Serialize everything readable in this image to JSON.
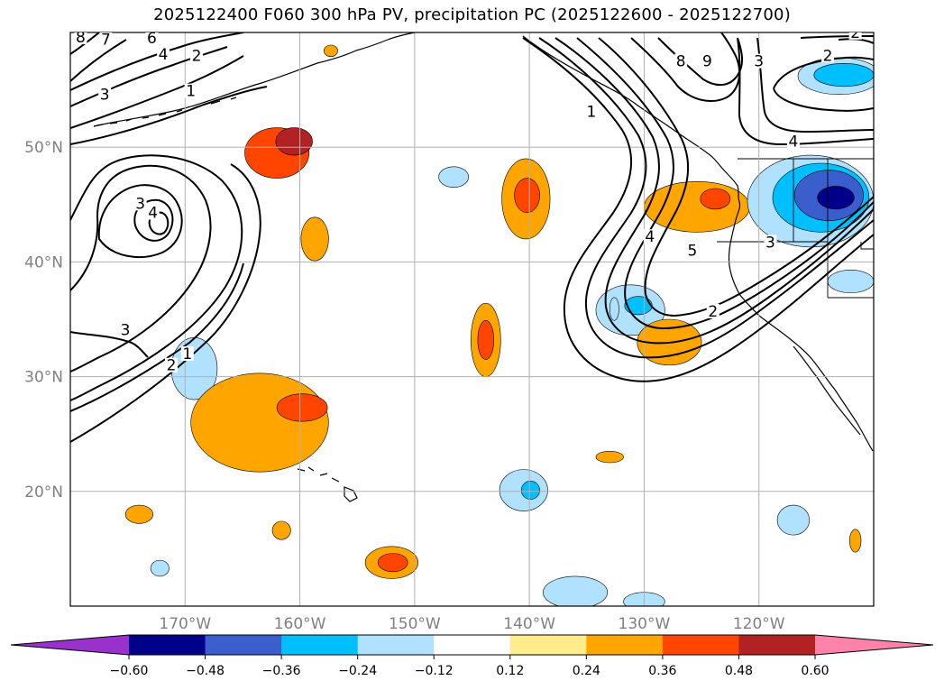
{
  "chart_data": {
    "type": "contour-map",
    "title": "2025122400 F060 300 hPa PV, precipitation PC (2025122600 - 2025122700)",
    "x_ticks": [
      "170°W",
      "160°W",
      "150°W",
      "140°W",
      "130°W",
      "120°W"
    ],
    "x_tick_values": [
      -170,
      -160,
      -150,
      -140,
      -130,
      -120
    ],
    "y_ticks": [
      "50°N",
      "40°N",
      "30°N",
      "20°N"
    ],
    "y_tick_values": [
      50,
      40,
      30,
      20
    ],
    "lon_range": [
      -180,
      -110
    ],
    "lat_range": [
      10,
      60
    ],
    "contour_field": "300 hPa PV",
    "contour_labels": [
      {
        "text": "8",
        "lon": -179.1,
        "lat": 59.3
      },
      {
        "text": "7",
        "lon": -176.9,
        "lat": 59.1
      },
      {
        "text": "6",
        "lon": -172.9,
        "lat": 59.2
      },
      {
        "text": "4",
        "lon": -171.9,
        "lat": 57.8
      },
      {
        "text": "2",
        "lon": -169.0,
        "lat": 57.7
      },
      {
        "text": "3",
        "lon": -177.0,
        "lat": 54.3
      },
      {
        "text": "1",
        "lon": -169.5,
        "lat": 54.6
      },
      {
        "text": "1",
        "lon": -134.6,
        "lat": 52.8
      },
      {
        "text": "8",
        "lon": -126.8,
        "lat": 57.2
      },
      {
        "text": "9",
        "lon": -124.5,
        "lat": 57.2
      },
      {
        "text": "3",
        "lon": -120.0,
        "lat": 57.2
      },
      {
        "text": "2",
        "lon": -114.0,
        "lat": 57.7
      },
      {
        "text": "2",
        "lon": -111.6,
        "lat": 59.7
      },
      {
        "text": "4",
        "lon": -117.0,
        "lat": 50.2
      },
      {
        "text": "3",
        "lon": -173.9,
        "lat": 44.8
      },
      {
        "text": "4",
        "lon": -172.8,
        "lat": 44.0
      },
      {
        "text": "4",
        "lon": -129.5,
        "lat": 41.9
      },
      {
        "text": "5",
        "lon": -125.8,
        "lat": 40.7
      },
      {
        "text": "3",
        "lon": -119.0,
        "lat": 41.4
      },
      {
        "text": "2",
        "lon": -124.0,
        "lat": 35.4
      },
      {
        "text": "3",
        "lon": -175.2,
        "lat": 33.8
      },
      {
        "text": "2",
        "lon": -171.2,
        "lat": 30.7
      },
      {
        "text": "1",
        "lon": -169.8,
        "lat": 31.7
      }
    ],
    "colorbar": {
      "levels": [
        -0.6,
        -0.48,
        -0.36,
        -0.24,
        -0.12,
        0.12,
        0.24,
        0.36,
        0.48,
        0.6
      ],
      "tick_labels": [
        "−0.60",
        "−0.48",
        "−0.36",
        "−0.24",
        "−0.12",
        "0.12",
        "0.24",
        "0.36",
        "0.48",
        "0.60"
      ],
      "colors": [
        "#9932cc",
        "#00008b",
        "#3a5fcd",
        "#00bfff",
        "#b0e2ff",
        "#ffffff",
        "#ffec8b",
        "#ffa500",
        "#ff4500",
        "#b22222",
        "#ff82ab"
      ],
      "extend": "both"
    },
    "precip_blobs": [
      {
        "lon": -162,
        "lat": 49.5,
        "rx": 2.8,
        "ry": 2.2,
        "value": 0.36
      },
      {
        "lon": -160.5,
        "lat": 50.5,
        "rx": 1.6,
        "ry": 1.2,
        "value": 0.48
      },
      {
        "lon": -146.6,
        "lat": 47.4,
        "rx": 1.3,
        "ry": 0.9,
        "value": -0.24
      },
      {
        "lon": -140.3,
        "lat": 45.5,
        "rx": 2.1,
        "ry": 3.5,
        "value": 0.24
      },
      {
        "lon": -140.2,
        "lat": 45.8,
        "rx": 1.1,
        "ry": 1.5,
        "value": 0.36
      },
      {
        "lon": -158.7,
        "lat": 42.0,
        "rx": 1.2,
        "ry": 1.9,
        "value": 0.24
      },
      {
        "lon": -143.8,
        "lat": 33.2,
        "rx": 1.3,
        "ry": 3.2,
        "value": 0.24
      },
      {
        "lon": -143.8,
        "lat": 33.2,
        "rx": 0.7,
        "ry": 1.7,
        "value": 0.36
      },
      {
        "lon": -169.2,
        "lat": 30.7,
        "rx": 2.0,
        "ry": 2.7,
        "value": -0.24
      },
      {
        "lon": -163.5,
        "lat": 26.0,
        "rx": 6.0,
        "ry": 4.3,
        "value": 0.24
      },
      {
        "lon": -159.8,
        "lat": 27.3,
        "rx": 2.2,
        "ry": 1.2,
        "value": 0.36
      },
      {
        "lon": -131.2,
        "lat": 35.8,
        "rx": 3.0,
        "ry": 2.2,
        "value": -0.24
      },
      {
        "lon": -130.5,
        "lat": 36.2,
        "rx": 1.2,
        "ry": 0.8,
        "value": -0.36
      },
      {
        "lon": -127.8,
        "lat": 33.0,
        "rx": 2.8,
        "ry": 2.0,
        "value": 0.24
      },
      {
        "lon": -125.4,
        "lat": 44.8,
        "rx": 4.6,
        "ry": 2.2,
        "value": 0.24
      },
      {
        "lon": -123.8,
        "lat": 45.5,
        "rx": 1.3,
        "ry": 0.9,
        "value": 0.36
      },
      {
        "lon": -115.5,
        "lat": 45.3,
        "rx": 5.5,
        "ry": 4.0,
        "value": -0.24
      },
      {
        "lon": -114.6,
        "lat": 45.6,
        "rx": 4.2,
        "ry": 3.0,
        "value": -0.36
      },
      {
        "lon": -113.9,
        "lat": 45.8,
        "rx": 3.0,
        "ry": 2.2,
        "value": -0.48
      },
      {
        "lon": -113.3,
        "lat": 45.6,
        "rx": 1.6,
        "ry": 1.0,
        "value": -0.6
      },
      {
        "lon": -113.0,
        "lat": 56.2,
        "rx": 3.6,
        "ry": 1.6,
        "value": -0.24
      },
      {
        "lon": -112.6,
        "lat": 56.3,
        "rx": 2.6,
        "ry": 1.0,
        "value": -0.36
      },
      {
        "lon": -112.0,
        "lat": 38.3,
        "rx": 2.0,
        "ry": 1.0,
        "value": -0.24
      },
      {
        "lon": -140.5,
        "lat": 20.1,
        "rx": 2.1,
        "ry": 1.8,
        "value": -0.24
      },
      {
        "lon": -139.9,
        "lat": 20.1,
        "rx": 0.8,
        "ry": 0.8,
        "value": -0.36
      },
      {
        "lon": -152.0,
        "lat": 13.8,
        "rx": 2.3,
        "ry": 1.4,
        "value": 0.24
      },
      {
        "lon": -151.9,
        "lat": 13.8,
        "rx": 1.3,
        "ry": 0.8,
        "value": 0.36
      },
      {
        "lon": -174.0,
        "lat": 18.0,
        "rx": 1.2,
        "ry": 0.8,
        "value": 0.24
      },
      {
        "lon": -161.6,
        "lat": 16.6,
        "rx": 0.8,
        "ry": 0.8,
        "value": 0.24
      },
      {
        "lon": -172.2,
        "lat": 13.3,
        "rx": 0.8,
        "ry": 0.7,
        "value": -0.24
      },
      {
        "lon": -136.0,
        "lat": 11.2,
        "rx": 2.8,
        "ry": 1.4,
        "value": -0.24
      },
      {
        "lon": -130.0,
        "lat": 10.4,
        "rx": 1.8,
        "ry": 0.8,
        "value": -0.24
      },
      {
        "lon": -117.0,
        "lat": 17.5,
        "rx": 1.4,
        "ry": 1.3,
        "value": -0.24
      },
      {
        "lon": -111.6,
        "lat": 15.7,
        "rx": 0.5,
        "ry": 1.0,
        "value": 0.24
      },
      {
        "lon": -133.0,
        "lat": 23.0,
        "rx": 1.2,
        "ry": 0.5,
        "value": 0.24
      },
      {
        "lon": -132.6,
        "lat": 35.9,
        "rx": 0.4,
        "ry": 1.0,
        "value": -0.24
      },
      {
        "lon": -157.3,
        "lat": 58.4,
        "rx": 0.6,
        "ry": 0.5,
        "value": 0.24
      }
    ]
  }
}
